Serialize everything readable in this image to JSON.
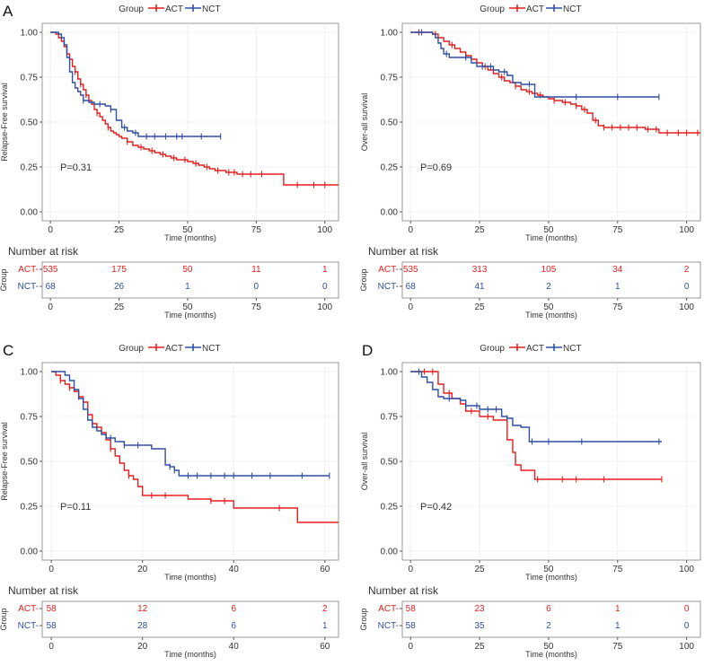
{
  "colors": {
    "act": "#e3201f",
    "nct": "#2e4fa5",
    "axis": "#555555",
    "grid": "#ebebeb",
    "text": "#333333"
  },
  "legend_title": "Group",
  "legend_act": "ACT",
  "legend_nct": "NCT",
  "chart_data": [
    {
      "panel_label": "A",
      "type": "line",
      "title": "",
      "xlabel": "Time (months)",
      "ylabel": "Relapse-Free survival",
      "xlim": [
        -3,
        105
      ],
      "ylim": [
        -0.05,
        1.05
      ],
      "xticks": [
        0,
        25,
        50,
        75,
        100
      ],
      "yticks": [
        "0.00",
        "0.25",
        "0.50",
        "0.75",
        "1.00"
      ],
      "pvalue": "P=0.31",
      "series": [
        {
          "name": "ACT",
          "x": [
            0,
            2,
            3,
            4,
            5,
            6,
            7,
            8,
            9,
            10,
            11,
            12,
            13,
            14,
            15,
            16,
            17,
            18,
            19,
            20,
            21,
            22,
            23,
            24,
            25,
            26,
            28,
            30,
            32,
            34,
            36,
            38,
            40,
            42,
            44,
            46,
            48,
            50,
            52,
            54,
            56,
            58,
            60,
            62,
            64,
            66,
            68,
            70,
            72,
            75,
            80,
            85,
            90,
            95,
            100,
            105
          ],
          "y": [
            1.0,
            0.99,
            0.97,
            0.95,
            0.92,
            0.88,
            0.85,
            0.81,
            0.78,
            0.74,
            0.71,
            0.68,
            0.65,
            0.62,
            0.6,
            0.57,
            0.55,
            0.53,
            0.51,
            0.49,
            0.47,
            0.45,
            0.44,
            0.43,
            0.42,
            0.41,
            0.39,
            0.37,
            0.36,
            0.35,
            0.34,
            0.33,
            0.32,
            0.31,
            0.3,
            0.29,
            0.29,
            0.28,
            0.27,
            0.26,
            0.25,
            0.24,
            0.23,
            0.23,
            0.22,
            0.22,
            0.21,
            0.21,
            0.21,
            0.21,
            0.21,
            0.15,
            0.15,
            0.15,
            0.15,
            0.15
          ],
          "censor_x": [
            9,
            11,
            13,
            17,
            21,
            28,
            33,
            37,
            41,
            45,
            49,
            53,
            57,
            61,
            65,
            67,
            70,
            73,
            77,
            90,
            96,
            100
          ]
        },
        {
          "name": "NCT",
          "x": [
            0,
            2,
            3,
            4,
            5,
            6,
            7,
            8,
            9,
            10,
            11,
            12,
            14,
            16,
            18,
            20,
            22,
            24,
            26,
            28,
            30,
            32,
            35,
            40,
            45,
            50,
            55,
            60,
            62
          ],
          "y": [
            1.0,
            1.0,
            0.99,
            0.97,
            0.93,
            0.86,
            0.78,
            0.72,
            0.69,
            0.67,
            0.65,
            0.62,
            0.61,
            0.6,
            0.6,
            0.59,
            0.57,
            0.51,
            0.47,
            0.45,
            0.44,
            0.42,
            0.42,
            0.42,
            0.42,
            0.42,
            0.42,
            0.42,
            0.42
          ],
          "censor_x": [
            12,
            18,
            22,
            27,
            31,
            35,
            38,
            42,
            46,
            48,
            55,
            62
          ]
        }
      ],
      "risk_title": "Number at risk",
      "risk_xlabel": "Time (months)",
      "risk_group_label": "Group",
      "risk_rows": [
        {
          "name": "ACT",
          "tick_label": "ACT",
          "values": [
            "535",
            "175",
            "50",
            "11",
            "1"
          ]
        },
        {
          "name": "NCT",
          "tick_label": "NCT",
          "values": [
            "68",
            "26",
            "1",
            "0",
            "0"
          ]
        }
      ],
      "risk_x": [
        0,
        25,
        50,
        75,
        100
      ]
    },
    {
      "panel_label": "",
      "type": "line",
      "title": "",
      "xlabel": "Time (months)",
      "ylabel": "Over-all survival",
      "xlim": [
        -3,
        105
      ],
      "ylim": [
        -0.05,
        1.05
      ],
      "xticks": [
        0,
        25,
        50,
        75,
        100
      ],
      "yticks": [
        "0.00",
        "0.25",
        "0.50",
        "0.75",
        "1.00"
      ],
      "pvalue": "P=0.69",
      "series": [
        {
          "name": "ACT",
          "x": [
            0,
            5,
            8,
            10,
            12,
            14,
            16,
            18,
            20,
            22,
            24,
            26,
            28,
            30,
            32,
            34,
            36,
            38,
            40,
            42,
            44,
            46,
            48,
            50,
            52,
            55,
            58,
            60,
            62,
            64,
            66,
            68,
            70,
            75,
            80,
            85,
            90,
            95,
            100,
            105
          ],
          "y": [
            1.0,
            1.0,
            0.99,
            0.97,
            0.95,
            0.93,
            0.91,
            0.89,
            0.87,
            0.85,
            0.83,
            0.81,
            0.79,
            0.77,
            0.75,
            0.73,
            0.72,
            0.7,
            0.68,
            0.67,
            0.66,
            0.65,
            0.64,
            0.63,
            0.62,
            0.61,
            0.6,
            0.59,
            0.57,
            0.55,
            0.51,
            0.48,
            0.47,
            0.47,
            0.47,
            0.46,
            0.44,
            0.44,
            0.44,
            0.44
          ],
          "censor_x": [
            3,
            9,
            15,
            20,
            27,
            33,
            38,
            43,
            47,
            52,
            56,
            60,
            63,
            67,
            70,
            73,
            76,
            79,
            82,
            86,
            89,
            93,
            97,
            100,
            104
          ]
        },
        {
          "name": "NCT",
          "x": [
            0,
            5,
            8,
            9,
            10,
            11,
            12,
            14,
            16,
            18,
            20,
            22,
            24,
            25,
            28,
            30,
            32,
            35,
            37,
            40,
            42,
            45,
            50,
            55,
            60,
            65,
            70,
            80,
            90
          ],
          "y": [
            1.0,
            1.0,
            0.99,
            0.97,
            0.94,
            0.91,
            0.88,
            0.86,
            0.86,
            0.86,
            0.86,
            0.83,
            0.81,
            0.81,
            0.81,
            0.79,
            0.78,
            0.76,
            0.72,
            0.71,
            0.71,
            0.64,
            0.64,
            0.64,
            0.64,
            0.64,
            0.64,
            0.64,
            0.64
          ],
          "censor_x": [
            4,
            13,
            20,
            26,
            29,
            34,
            43,
            60,
            75,
            90
          ]
        }
      ],
      "risk_title": "Number at risk",
      "risk_xlabel": "Time (months)",
      "risk_group_label": "Group",
      "risk_rows": [
        {
          "name": "ACT",
          "tick_label": "ACT",
          "values": [
            "535",
            "313",
            "105",
            "34",
            "2"
          ]
        },
        {
          "name": "NCT",
          "tick_label": "NCT",
          "values": [
            "68",
            "41",
            "2",
            "1",
            "0"
          ]
        }
      ],
      "risk_x": [
        0,
        25,
        50,
        75,
        100
      ]
    },
    {
      "panel_label": "C",
      "type": "line",
      "title": "",
      "xlabel": "Time (months)",
      "ylabel": "Relapse-Free survival",
      "xlim": [
        -2,
        63
      ],
      "ylim": [
        -0.05,
        1.05
      ],
      "xticks": [
        0,
        20,
        40,
        60
      ],
      "yticks": [
        "0.00",
        "0.25",
        "0.50",
        "0.75",
        "1.00"
      ],
      "pvalue": "P=0.11",
      "series": [
        {
          "name": "ACT",
          "x": [
            0,
            1,
            2,
            3,
            4,
            5,
            6,
            7,
            8,
            9,
            10,
            11,
            12,
            13,
            14,
            15,
            16,
            17,
            18,
            19,
            20,
            22,
            25,
            30,
            35,
            38,
            40,
            45,
            50,
            54,
            55,
            60,
            63
          ],
          "y": [
            1.0,
            0.98,
            0.95,
            0.93,
            0.91,
            0.89,
            0.86,
            0.83,
            0.76,
            0.71,
            0.69,
            0.66,
            0.62,
            0.57,
            0.53,
            0.49,
            0.45,
            0.42,
            0.4,
            0.36,
            0.31,
            0.31,
            0.31,
            0.29,
            0.28,
            0.28,
            0.24,
            0.24,
            0.24,
            0.16,
            0.16,
            0.16,
            0.16
          ],
          "censor_x": [
            2,
            4,
            6,
            10,
            13,
            17,
            22,
            25,
            35,
            38,
            50
          ]
        },
        {
          "name": "NCT",
          "x": [
            0,
            2,
            3,
            4,
            5,
            6,
            7,
            8,
            9,
            10,
            11,
            12,
            14,
            16,
            18,
            20,
            22,
            24,
            25,
            26,
            27,
            28,
            30,
            35,
            40,
            45,
            50,
            55,
            61
          ],
          "y": [
            1.0,
            1.0,
            0.98,
            0.95,
            0.9,
            0.85,
            0.79,
            0.73,
            0.69,
            0.67,
            0.65,
            0.63,
            0.61,
            0.59,
            0.59,
            0.59,
            0.57,
            0.57,
            0.48,
            0.47,
            0.45,
            0.42,
            0.42,
            0.42,
            0.42,
            0.42,
            0.42,
            0.42,
            0.42
          ],
          "censor_x": [
            13,
            16,
            19,
            26,
            27,
            30,
            32,
            35,
            38,
            40,
            44,
            48,
            55,
            61
          ]
        }
      ],
      "risk_title": "Number at risk",
      "risk_xlabel": "Time (months)",
      "risk_group_label": "Group",
      "risk_rows": [
        {
          "name": "ACT",
          "tick_label": "ACT",
          "values": [
            "58",
            "12",
            "6",
            "2"
          ]
        },
        {
          "name": "NCT",
          "tick_label": "NCT",
          "values": [
            "58",
            "28",
            "6",
            "1"
          ]
        }
      ],
      "risk_x": [
        0,
        20,
        40,
        60
      ]
    },
    {
      "panel_label": "D",
      "type": "line",
      "title": "",
      "xlabel": "Time (months)",
      "ylabel": "Over-all survival",
      "xlim": [
        -3,
        105
      ],
      "ylim": [
        -0.05,
        1.05
      ],
      "xticks": [
        0,
        25,
        50,
        75,
        100
      ],
      "yticks": [
        "0.00",
        "0.25",
        "0.50",
        "0.75",
        "1.00"
      ],
      "pvalue": "P=0.42",
      "series": [
        {
          "name": "ACT",
          "x": [
            0,
            10,
            12,
            15,
            18,
            20,
            25,
            30,
            35,
            37,
            38,
            40,
            42,
            45,
            50,
            60,
            70,
            80,
            91
          ],
          "y": [
            1.0,
            0.93,
            0.88,
            0.85,
            0.82,
            0.78,
            0.75,
            0.73,
            0.62,
            0.55,
            0.48,
            0.45,
            0.45,
            0.4,
            0.4,
            0.4,
            0.4,
            0.4,
            0.4
          ],
          "censor_x": [
            5,
            8,
            14,
            22,
            28,
            46,
            55,
            60,
            70,
            91
          ]
        },
        {
          "name": "NCT",
          "x": [
            0,
            2,
            4,
            6,
            8,
            10,
            12,
            15,
            18,
            20,
            25,
            30,
            33,
            35,
            37,
            40,
            42,
            43,
            45,
            50,
            60,
            70,
            80,
            91
          ],
          "y": [
            1.0,
            1.0,
            0.97,
            0.94,
            0.9,
            0.86,
            0.85,
            0.85,
            0.84,
            0.81,
            0.79,
            0.79,
            0.75,
            0.74,
            0.7,
            0.69,
            0.69,
            0.61,
            0.61,
            0.61,
            0.61,
            0.61,
            0.61,
            0.61
          ],
          "censor_x": [
            3,
            14,
            20,
            24,
            28,
            31,
            35,
            44,
            50,
            62,
            90
          ]
        }
      ],
      "risk_title": "Number at risk",
      "risk_xlabel": "Time (months)",
      "risk_group_label": "Group",
      "risk_rows": [
        {
          "name": "ACT",
          "tick_label": "ACT",
          "values": [
            "58",
            "23",
            "6",
            "1",
            "0"
          ]
        },
        {
          "name": "NCT",
          "tick_label": "NCT",
          "values": [
            "58",
            "35",
            "2",
            "1",
            "0"
          ]
        }
      ],
      "risk_x": [
        0,
        25,
        50,
        75,
        100
      ]
    }
  ]
}
